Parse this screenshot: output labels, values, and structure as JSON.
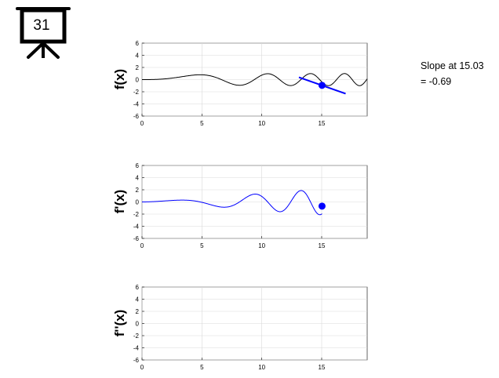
{
  "slide": {
    "number": "31"
  },
  "slope": {
    "line1": "Slope at 15.03",
    "line2": "= -0.69"
  },
  "chart_data": [
    {
      "type": "line",
      "ylabel": "f(x)",
      "xlim": [
        0,
        18.8
      ],
      "ylim": [
        -6,
        6
      ],
      "x_ticks": [
        "0",
        "5",
        "10",
        "15"
      ],
      "y_ticks": [
        "6",
        "4",
        "2",
        "0",
        "-2",
        "-4",
        "-6"
      ],
      "grid": true,
      "series": [
        {
          "curve": "f",
          "color": "#000000",
          "x_from": 0,
          "x_to": 18.8
        }
      ],
      "tangent": {
        "x0": 15.03,
        "y0": -0.95,
        "slope": -0.69,
        "x_from": 13.1,
        "x_to": 17.0,
        "color": "#0000ff"
      },
      "marker": {
        "x": 15.03,
        "y": -0.95,
        "color": "#0000ff"
      }
    },
    {
      "type": "line",
      "ylabel": "f'(x)",
      "xlim": [
        0,
        18.8
      ],
      "ylim": [
        -6,
        6
      ],
      "x_ticks": [
        "0",
        "5",
        "10",
        "15"
      ],
      "y_ticks": [
        "6",
        "4",
        "2",
        "0",
        "-2",
        "-4",
        "-6"
      ],
      "grid": true,
      "series": [
        {
          "curve": "fprime",
          "color": "#0000ff",
          "x_from": 0,
          "x_to": 15.03
        }
      ],
      "marker": {
        "x": 15.03,
        "y": -0.69,
        "color": "#0000ff"
      }
    },
    {
      "type": "line",
      "ylabel": "f''(x)",
      "xlim": [
        0,
        18.8
      ],
      "ylim": [
        -6,
        6
      ],
      "x_ticks": [
        "0",
        "5",
        "10",
        "15"
      ],
      "y_ticks": [
        "6",
        "4",
        "2",
        "0",
        "-2",
        "-4",
        "-6"
      ],
      "grid": true,
      "series": []
    }
  ]
}
